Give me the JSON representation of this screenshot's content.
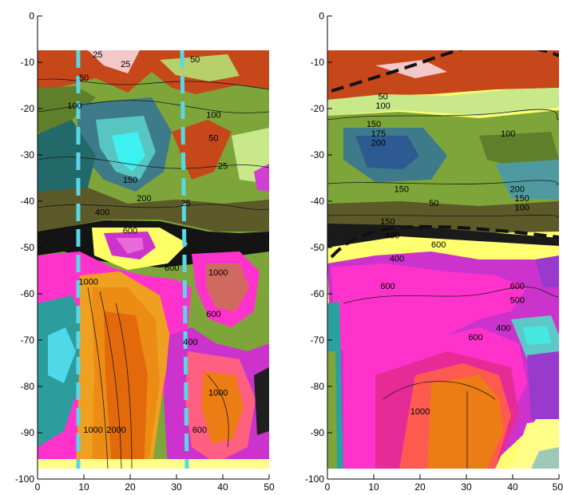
{
  "chart_data": [
    {
      "type": "contour",
      "panel": "left",
      "x_ticks": [
        0,
        10,
        20,
        30,
        40,
        50
      ],
      "y_ticks": [
        0,
        -10,
        -20,
        -30,
        -40,
        -50,
        -60,
        -70,
        -80,
        -90,
        -100
      ],
      "xlim": [
        0,
        50
      ],
      "ylim": [
        -100,
        0
      ],
      "data_extent": {
        "x": [
          0,
          50
        ],
        "y": [
          -98,
          -7
        ]
      },
      "contour_labels": [
        {
          "text": "25",
          "x": 13,
          "y": -9
        },
        {
          "text": "50",
          "x": 10,
          "y": -14
        },
        {
          "text": "25",
          "x": 19,
          "y": -11
        },
        {
          "text": "50",
          "x": 34,
          "y": -10
        },
        {
          "text": "100",
          "x": 8,
          "y": -20
        },
        {
          "text": "100",
          "x": 38,
          "y": -22
        },
        {
          "text": "50",
          "x": 38,
          "y": -27
        },
        {
          "text": "25",
          "x": 40,
          "y": -33
        },
        {
          "text": "150",
          "x": 20,
          "y": -36
        },
        {
          "text": "200",
          "x": 23,
          "y": -40
        },
        {
          "text": "25",
          "x": 32,
          "y": -41
        },
        {
          "text": "400",
          "x": 14,
          "y": -43
        },
        {
          "text": "600",
          "x": 20,
          "y": -47
        },
        {
          "text": "600",
          "x": 29,
          "y": -55
        },
        {
          "text": "1000",
          "x": 11,
          "y": -58
        },
        {
          "text": "1000",
          "x": 39,
          "y": -56
        },
        {
          "text": "600",
          "x": 38,
          "y": -65
        },
        {
          "text": "400",
          "x": 33,
          "y": -71
        },
        {
          "text": "1000",
          "x": 39,
          "y": -82
        },
        {
          "text": "2000",
          "x": 17,
          "y": -90
        },
        {
          "text": "1000",
          "x": 12,
          "y": -90
        },
        {
          "text": "600",
          "x": 35,
          "y": -90
        }
      ],
      "colors": {
        "dashed_lines": "#5ad7e6"
      }
    },
    {
      "type": "contour",
      "panel": "right",
      "x_ticks": [
        0,
        10,
        20,
        30,
        40,
        "50"
      ],
      "y_ticks": [
        0,
        -10,
        -20,
        -30,
        -40,
        -50,
        -60,
        -70,
        -80,
        -90,
        -100
      ],
      "xlim": [
        0,
        50
      ],
      "ylim": [
        -100,
        0
      ],
      "data_extent": {
        "x": [
          0,
          50
        ],
        "y": [
          -98,
          -7
        ]
      },
      "contour_labels": [
        {
          "text": "50",
          "x": 12,
          "y": -18
        },
        {
          "text": "100",
          "x": 12,
          "y": -20
        },
        {
          "text": "150",
          "x": 10,
          "y": -24
        },
        {
          "text": "175",
          "x": 11,
          "y": -26
        },
        {
          "text": "200",
          "x": 11,
          "y": -28
        },
        {
          "text": "100",
          "x": 39,
          "y": -26
        },
        {
          "text": "150",
          "x": 16,
          "y": -38
        },
        {
          "text": "50",
          "x": 23,
          "y": -41
        },
        {
          "text": "200",
          "x": 41,
          "y": -38
        },
        {
          "text": "150",
          "x": 42,
          "y": -40
        },
        {
          "text": "100",
          "x": 42,
          "y": -42
        },
        {
          "text": "150",
          "x": 13,
          "y": -45
        },
        {
          "text": "400",
          "x": 14,
          "y": -48
        },
        {
          "text": "600",
          "x": 24,
          "y": -50
        },
        {
          "text": "400",
          "x": 15,
          "y": -53
        },
        {
          "text": "600",
          "x": 13,
          "y": -59
        },
        {
          "text": "600",
          "x": 41,
          "y": -59
        },
        {
          "text": "500",
          "x": 41,
          "y": -62
        },
        {
          "text": "400",
          "x": 38,
          "y": -68
        },
        {
          "text": "600",
          "x": 32,
          "y": -70
        },
        {
          "text": "1000",
          "x": 20,
          "y": -86
        }
      ],
      "colors": {
        "dashed_lines": "#111111"
      }
    }
  ]
}
